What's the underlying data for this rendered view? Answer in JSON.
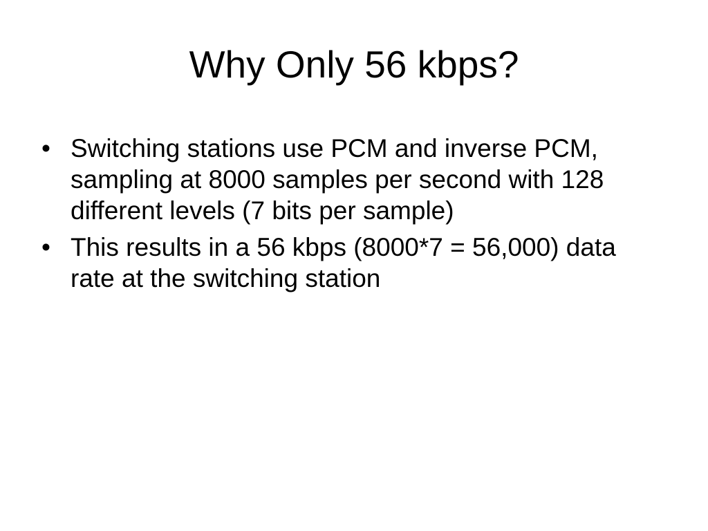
{
  "slide": {
    "title": "Why Only 56 kbps?",
    "bullets": [
      "Switching stations use PCM and inverse PCM, sampling at 8000 samples per second with 128 different levels (7 bits per sample)",
      "This results in a 56 kbps (8000*7 = 56,000) data rate at the switching station"
    ]
  }
}
